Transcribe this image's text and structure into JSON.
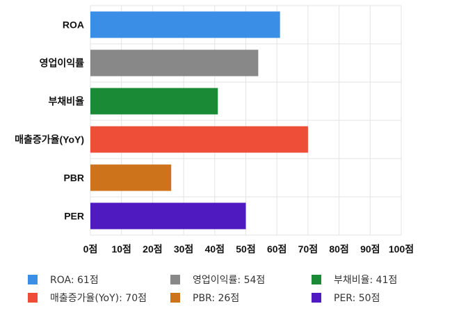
{
  "chart_data": {
    "type": "bar",
    "orientation": "horizontal",
    "categories": [
      "ROA",
      "영업이익률",
      "부채비율",
      "매출증가율(YoY)",
      "PBR",
      "PER"
    ],
    "values": [
      61,
      54,
      41,
      70,
      26,
      50
    ],
    "colors": [
      "#3a8ee6",
      "#888888",
      "#1b8a36",
      "#ee4d38",
      "#cc731b",
      "#4f1bc1"
    ],
    "xlim": [
      0,
      100
    ],
    "xticks": [
      0,
      10,
      20,
      30,
      40,
      50,
      60,
      70,
      80,
      90,
      100
    ],
    "tick_suffix": "점",
    "grid": true,
    "legend_placement": "bottom",
    "legend": [
      "ROA: 61점",
      "영업이익률: 54점",
      "부채비율: 41점",
      "매출증가율(YoY): 70점",
      "PBR: 26점",
      "PER: 50점"
    ]
  }
}
